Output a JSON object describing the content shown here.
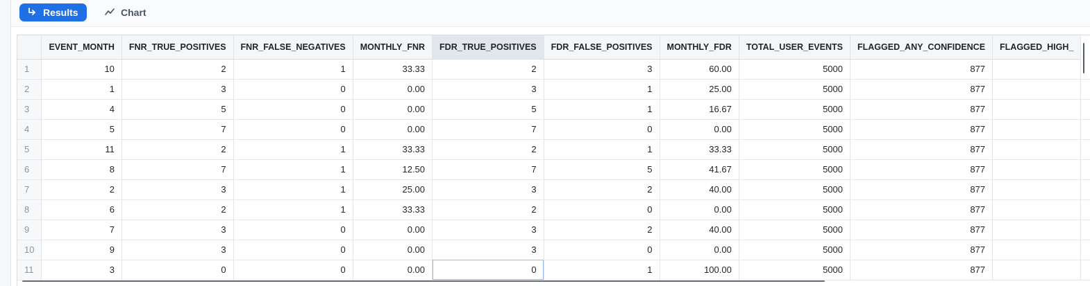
{
  "toolbar": {
    "results_label": "Results",
    "chart_label": "Chart"
  },
  "table": {
    "columns": [
      "EVENT_MONTH",
      "FNR_TRUE_POSITIVES",
      "FNR_FALSE_NEGATIVES",
      "MONTHLY_FNR",
      "FDR_TRUE_POSITIVES",
      "FDR_FALSE_POSITIVES",
      "MONTHLY_FDR",
      "TOTAL_USER_EVENTS",
      "FLAGGED_ANY_CONFIDENCE",
      "FLAGGED_HIGH_"
    ],
    "rows": [
      {
        "n": "1",
        "cells": [
          "10",
          "2",
          "1",
          "33.33",
          "2",
          "3",
          "60.00",
          "5000",
          "877",
          ""
        ]
      },
      {
        "n": "2",
        "cells": [
          "1",
          "3",
          "0",
          "0.00",
          "3",
          "1",
          "25.00",
          "5000",
          "877",
          ""
        ]
      },
      {
        "n": "3",
        "cells": [
          "4",
          "5",
          "0",
          "0.00",
          "5",
          "1",
          "16.67",
          "5000",
          "877",
          ""
        ]
      },
      {
        "n": "4",
        "cells": [
          "5",
          "7",
          "0",
          "0.00",
          "7",
          "0",
          "0.00",
          "5000",
          "877",
          ""
        ]
      },
      {
        "n": "5",
        "cells": [
          "11",
          "2",
          "1",
          "33.33",
          "2",
          "1",
          "33.33",
          "5000",
          "877",
          ""
        ]
      },
      {
        "n": "6",
        "cells": [
          "8",
          "7",
          "1",
          "12.50",
          "7",
          "5",
          "41.67",
          "5000",
          "877",
          ""
        ]
      },
      {
        "n": "7",
        "cells": [
          "2",
          "3",
          "1",
          "25.00",
          "3",
          "2",
          "40.00",
          "5000",
          "877",
          ""
        ]
      },
      {
        "n": "8",
        "cells": [
          "6",
          "2",
          "1",
          "33.33",
          "2",
          "0",
          "0.00",
          "5000",
          "877",
          ""
        ]
      },
      {
        "n": "9",
        "cells": [
          "7",
          "3",
          "0",
          "0.00",
          "3",
          "2",
          "40.00",
          "5000",
          "877",
          ""
        ]
      },
      {
        "n": "10",
        "cells": [
          "9",
          "3",
          "0",
          "0.00",
          "3",
          "0",
          "0.00",
          "5000",
          "877",
          ""
        ]
      },
      {
        "n": "11",
        "cells": [
          "3",
          "0",
          "0",
          "0.00",
          "0",
          "1",
          "100.00",
          "5000",
          "877",
          ""
        ]
      }
    ]
  },
  "colors": {
    "accent": "#1f6fe5",
    "header_bg": "#f5f6f8",
    "selected_header_bg": "#e2e7ee"
  },
  "icons": {
    "results": "arrow-return-icon",
    "chart": "line-chart-icon"
  }
}
